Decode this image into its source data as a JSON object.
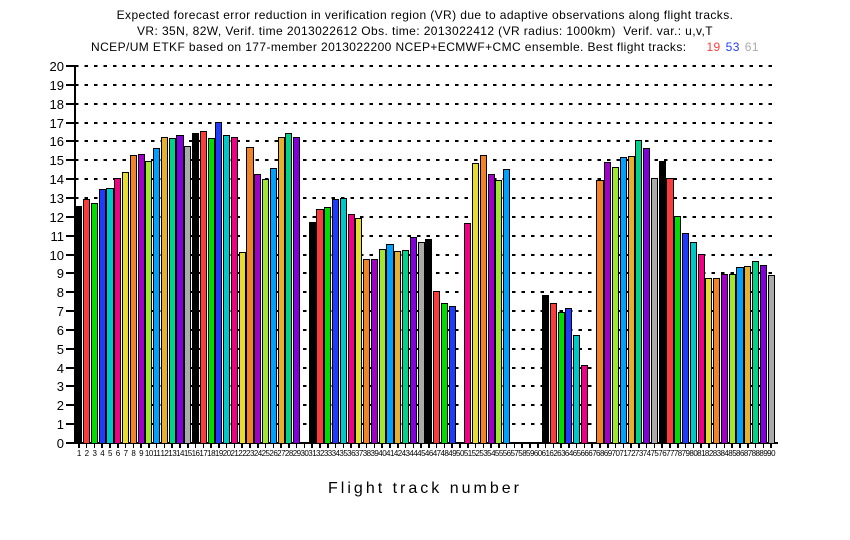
{
  "title": {
    "line1": "Expected forecast error reduction in verification region (VR) due to adaptive observations along flight tracks.",
    "line2": "VR: 35N, 82W, Verif. time 2013022612 Obs. time: 2013022412 (VR radius: 1000km)  Verif. var.: u,v,T",
    "line3_main": "NCEP/UM ETKF based on 177-member 2013022200 NCEP+ECMWF+CMC ensemble. Best flight tracks:",
    "best_tracks": [
      {
        "label": "19",
        "color": "#fa3c3c"
      },
      {
        "label": "53",
        "color": "#1e3cff"
      },
      {
        "label": "61",
        "color": "#aaaaaa"
      }
    ]
  },
  "chart_data": {
    "type": "bar",
    "title": "Expected forecast error reduction in verification region (VR) due to adaptive observations along flight tracks.",
    "xlabel": "Flight track number",
    "ylabel": "",
    "ylim": [
      0,
      20
    ],
    "ytick_interval": 1,
    "grid": "horizontal dotted lines at every integer 1-20",
    "legend_position": "none",
    "x_range": [
      1,
      90
    ],
    "missing_tracks": [
      30,
      50,
      57,
      58,
      59,
      60,
      67
    ],
    "palette_grads_1_to_15": [
      "#000000",
      "#fa3c3c",
      "#00dc00",
      "#1e3cff",
      "#00c8c8",
      "#f00082",
      "#e6dc32",
      "#f08228",
      "#a000c8",
      "#a0e632",
      "#00a0ff",
      "#e6af2d",
      "#00d28c",
      "#8200dc",
      "#aaaaaa"
    ],
    "color_rule": "bar color = palette[(track-1) mod 15]",
    "values": [
      12.5,
      12.9,
      12.7,
      13.4,
      13.5,
      14.0,
      14.3,
      15.2,
      15.3,
      14.9,
      15.6,
      16.2,
      16.15,
      16.3,
      15.7,
      16.4,
      16.5,
      16.15,
      17.0,
      16.3,
      16.2,
      10.1,
      15.65,
      14.2,
      13.95,
      14.55,
      16.2,
      16.4,
      16.2,
      null,
      11.65,
      12.35,
      12.45,
      12.9,
      12.95,
      12.1,
      11.9,
      9.7,
      9.7,
      10.25,
      10.5,
      10.15,
      10.2,
      10.85,
      10.6,
      10.75,
      8.0,
      7.4,
      7.2,
      null,
      11.6,
      14.8,
      15.2,
      14.2,
      13.9,
      14.5,
      null,
      null,
      null,
      null,
      7.8,
      7.4,
      6.9,
      7.1,
      5.7,
      4.1,
      null,
      13.9,
      14.85,
      14.6,
      15.1,
      15.15,
      16.0,
      15.6,
      14.0,
      14.9,
      14.0,
      12.0,
      11.1,
      10.6,
      10.0,
      8.7,
      8.7,
      8.9,
      8.9,
      9.3,
      9.35,
      9.6,
      9.4,
      8.85
    ]
  }
}
